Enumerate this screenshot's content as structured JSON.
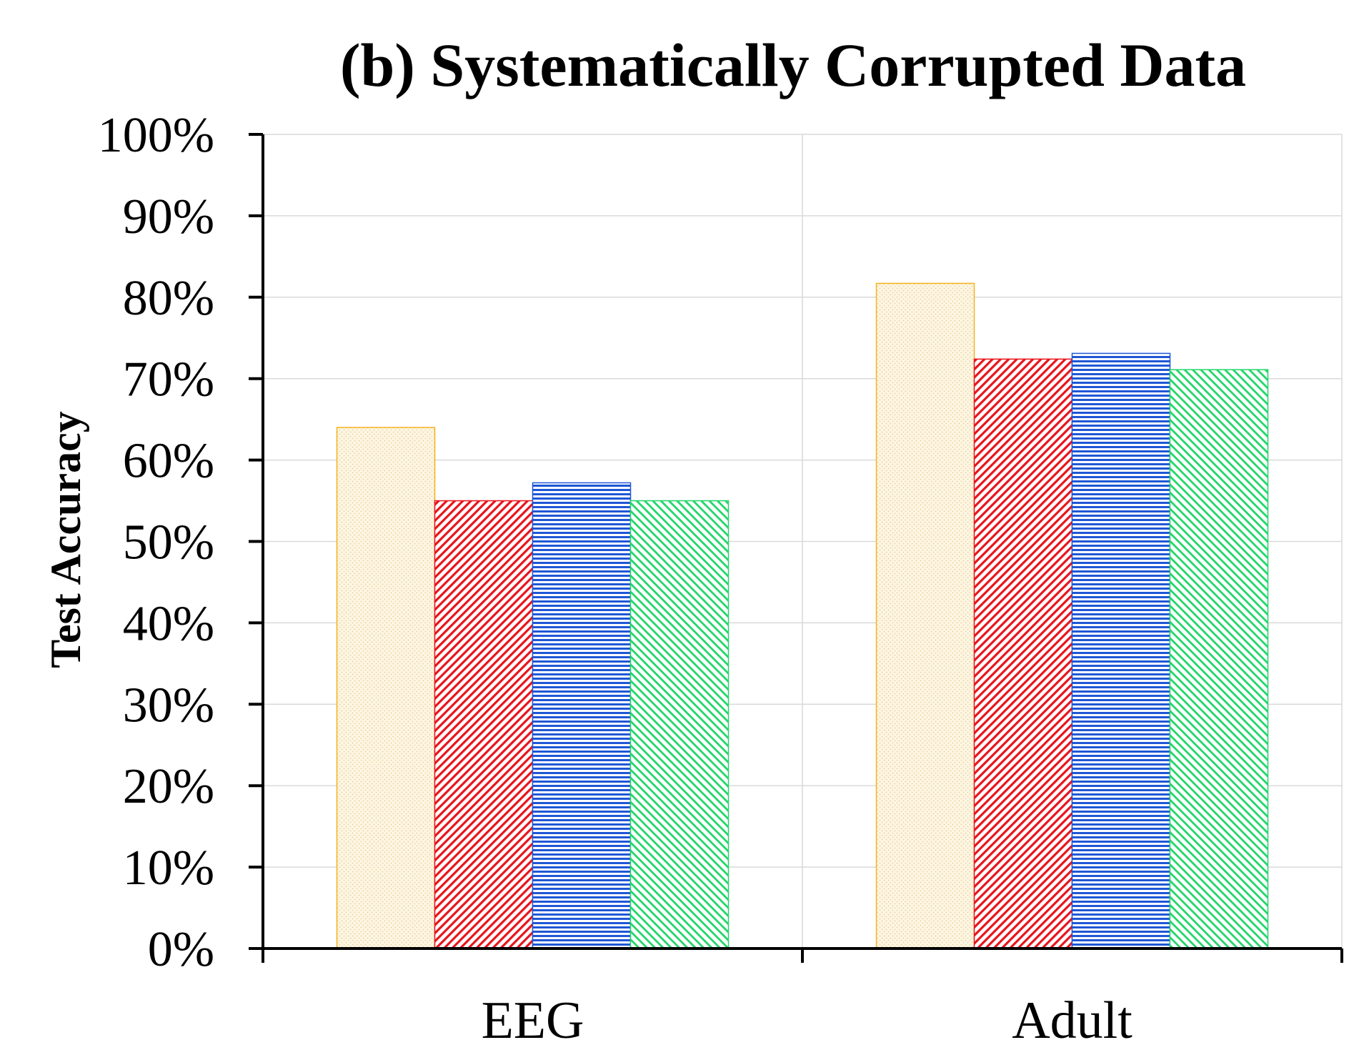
{
  "chart_data": {
    "type": "bar",
    "title": "(b) Systematically Corrupted Data",
    "xlabel": "",
    "ylabel": "Test Accuracy",
    "categories": [
      "EEG",
      "Adult"
    ],
    "ylim": [
      0,
      100
    ],
    "yticks": [
      "0%",
      "10%",
      "20%",
      "30%",
      "40%",
      "50%",
      "60%",
      "70%",
      "80%",
      "90%",
      "100%"
    ],
    "grid": true,
    "legend": "none",
    "series": [
      {
        "values": [
          64,
          81.7
        ],
        "color": "#f5b21e",
        "fill": "dotted-tan"
      },
      {
        "values": [
          55,
          72.4
        ],
        "color": "#e8141c",
        "fill": "diagonal-red"
      },
      {
        "values": [
          57.2,
          73.1
        ],
        "color": "#1f57d6",
        "fill": "horizontal-blue"
      },
      {
        "values": [
          55,
          71.1
        ],
        "color": "#22d66a",
        "fill": "diagonal-green"
      }
    ]
  }
}
